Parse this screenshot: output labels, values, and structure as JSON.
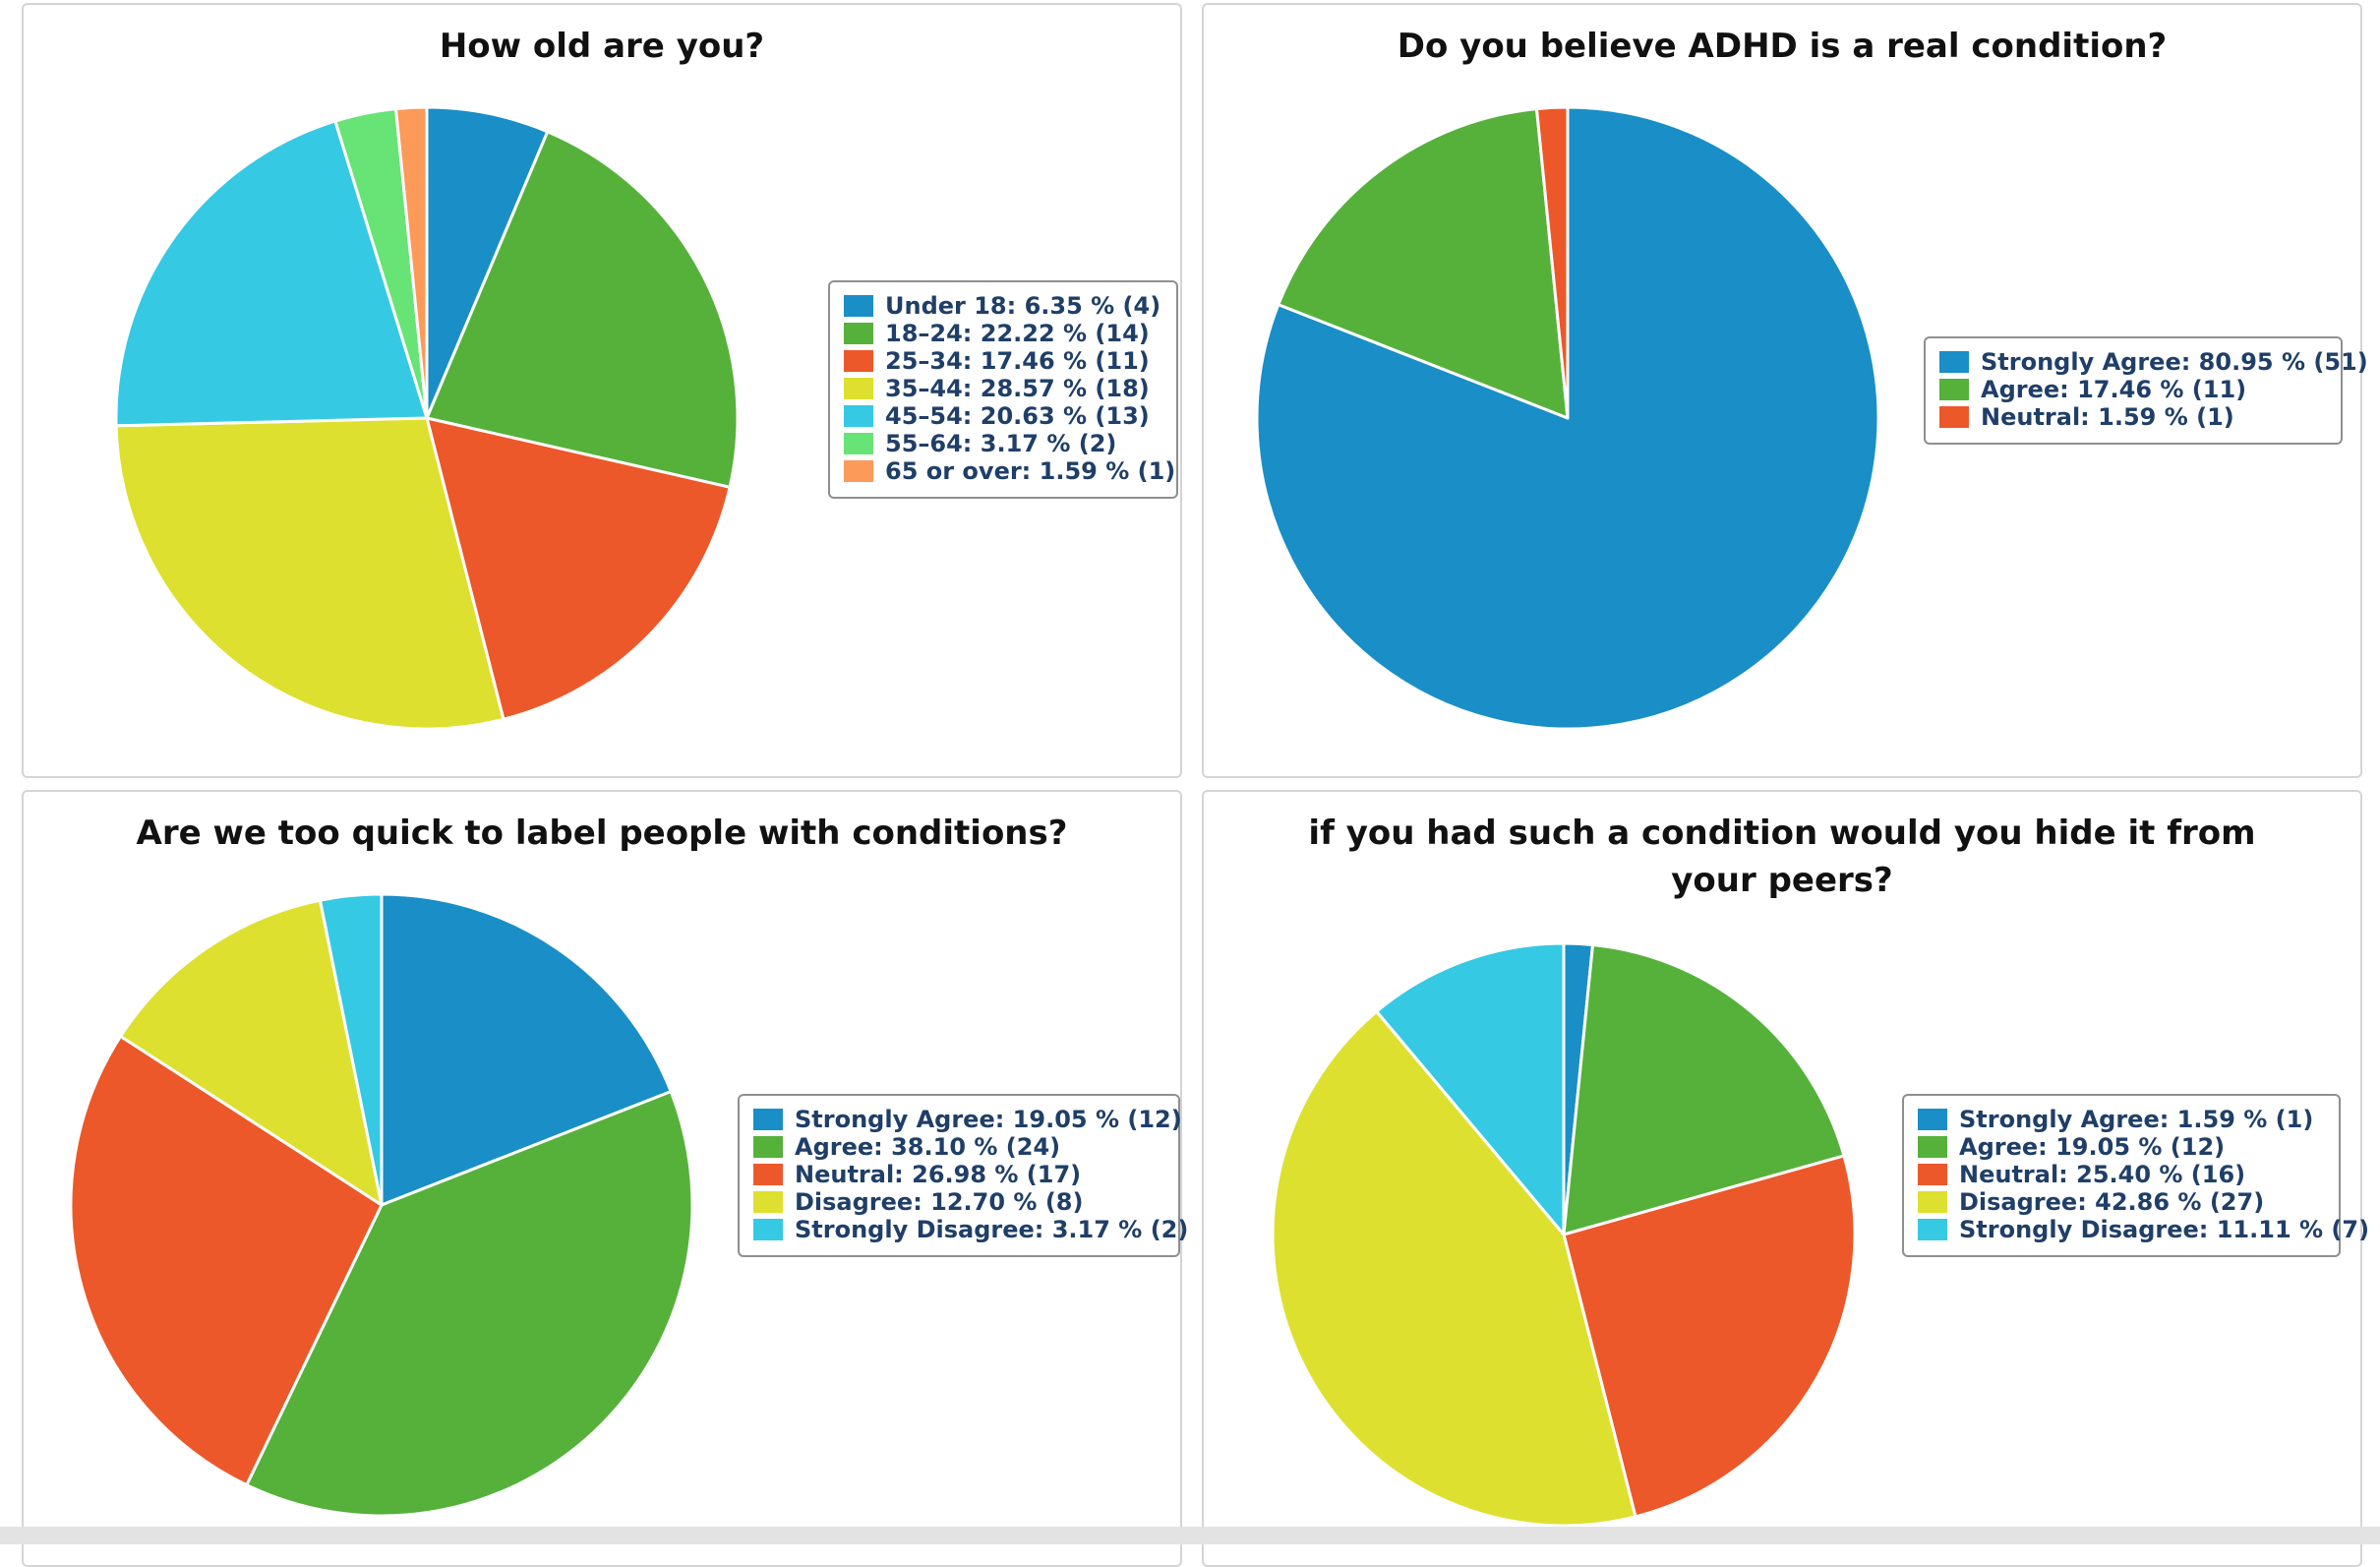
{
  "colors": [
    "#1a8ec6",
    "#56b13b",
    "#ec582a",
    "#dde02e",
    "#35c9e4",
    "#68e376",
    "#fc9a5a"
  ],
  "chart_data": [
    {
      "type": "pie",
      "title": "How old are you?",
      "legend_placement": "right",
      "slices": [
        {
          "label": "Under 18: 6.35 % (4)",
          "value": 6.35
        },
        {
          "label": "18–24: 22.22 % (14)",
          "value": 22.22
        },
        {
          "label": "25–34: 17.46 % (11)",
          "value": 17.46
        },
        {
          "label": "35–44: 28.57 % (18)",
          "value": 28.57
        },
        {
          "label": "45–54: 20.63 % (13)",
          "value": 20.63
        },
        {
          "label": "55–64: 3.17 % (2)",
          "value": 3.17
        },
        {
          "label": "65 or over: 1.59 % (1)",
          "value": 1.59
        }
      ]
    },
    {
      "type": "pie",
      "title": "Do you believe ADHD is a real condition?",
      "legend_placement": "right",
      "slices": [
        {
          "label": "Strongly Agree: 80.95 % (51)",
          "value": 80.95
        },
        {
          "label": "Agree: 17.46 % (11)",
          "value": 17.46
        },
        {
          "label": "Neutral: 1.59 % (1)",
          "value": 1.59
        }
      ]
    },
    {
      "type": "pie",
      "title": "Are we too quick to label people with conditions?",
      "legend_placement": "right",
      "slices": [
        {
          "label": "Strongly Agree: 19.05 % (12)",
          "value": 19.05
        },
        {
          "label": "Agree: 38.10 % (24)",
          "value": 38.1
        },
        {
          "label": "Neutral: 26.98 % (17)",
          "value": 26.98
        },
        {
          "label": "Disagree: 12.70 % (8)",
          "value": 12.7
        },
        {
          "label": "Strongly Disagree: 3.17 % (2)",
          "value": 3.17
        }
      ]
    },
    {
      "type": "pie",
      "title": "if you had such a condition would you hide it from your peers?",
      "legend_placement": "right",
      "slices": [
        {
          "label": "Strongly Agree: 1.59 % (1)",
          "value": 1.59
        },
        {
          "label": "Agree: 19.05 % (12)",
          "value": 19.05
        },
        {
          "label": "Neutral: 25.40 % (16)",
          "value": 25.4
        },
        {
          "label": "Disagree: 42.86 % (27)",
          "value": 42.86
        },
        {
          "label": "Strongly Disagree: 11.11 % (7)",
          "value": 11.11
        }
      ]
    }
  ]
}
